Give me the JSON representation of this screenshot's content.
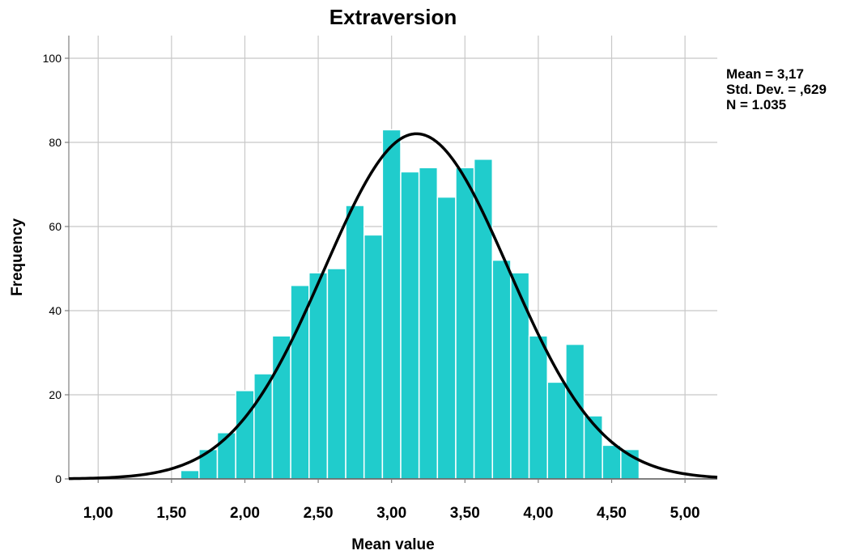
{
  "chart_data": {
    "type": "bar",
    "title": "Extraversion",
    "xlabel": "Mean value",
    "ylabel": "Frequency",
    "xlim": [
      0.8,
      5.22
    ],
    "ylim": [
      0,
      100
    ],
    "x_ticks": [
      "1,00",
      "1,50",
      "2,00",
      "2,50",
      "3,00",
      "3,50",
      "4,00",
      "4,50",
      "5,00"
    ],
    "x_tick_values": [
      1.0,
      1.5,
      2.0,
      2.5,
      3.0,
      3.5,
      4.0,
      4.5,
      5.0
    ],
    "y_ticks": [
      0,
      20,
      40,
      60,
      80,
      100
    ],
    "bin_width": 0.125,
    "bins": [
      {
        "start": 1.5625,
        "value": 2
      },
      {
        "start": 1.6875,
        "value": 7
      },
      {
        "start": 1.8125,
        "value": 11
      },
      {
        "start": 1.9375,
        "value": 21
      },
      {
        "start": 2.0625,
        "value": 25
      },
      {
        "start": 2.1875,
        "value": 34
      },
      {
        "start": 2.3125,
        "value": 46
      },
      {
        "start": 2.4375,
        "value": 49
      },
      {
        "start": 2.5625,
        "value": 50
      },
      {
        "start": 2.6875,
        "value": 65
      },
      {
        "start": 2.8125,
        "value": 58
      },
      {
        "start": 2.9375,
        "value": 83
      },
      {
        "start": 3.0625,
        "value": 73
      },
      {
        "start": 3.1875,
        "value": 74
      },
      {
        "start": 3.3125,
        "value": 67
      },
      {
        "start": 3.4375,
        "value": 74
      },
      {
        "start": 3.5625,
        "value": 76
      },
      {
        "start": 3.6875,
        "value": 52
      },
      {
        "start": 3.8125,
        "value": 49
      },
      {
        "start": 3.9375,
        "value": 34
      },
      {
        "start": 4.0625,
        "value": 23
      },
      {
        "start": 4.1875,
        "value": 32
      },
      {
        "start": 4.3125,
        "value": 15
      },
      {
        "start": 4.4375,
        "value": 8
      },
      {
        "start": 4.5625,
        "value": 7
      }
    ],
    "normal_curve": {
      "mean": 3.17,
      "sd": 0.629,
      "n": 1035
    },
    "stats_text": [
      "Mean = 3,17",
      "Std. Dev. = ,629",
      "N = 1.035"
    ],
    "grid": true,
    "bar_color": "#20CCCC",
    "curve_color": "#000000"
  }
}
